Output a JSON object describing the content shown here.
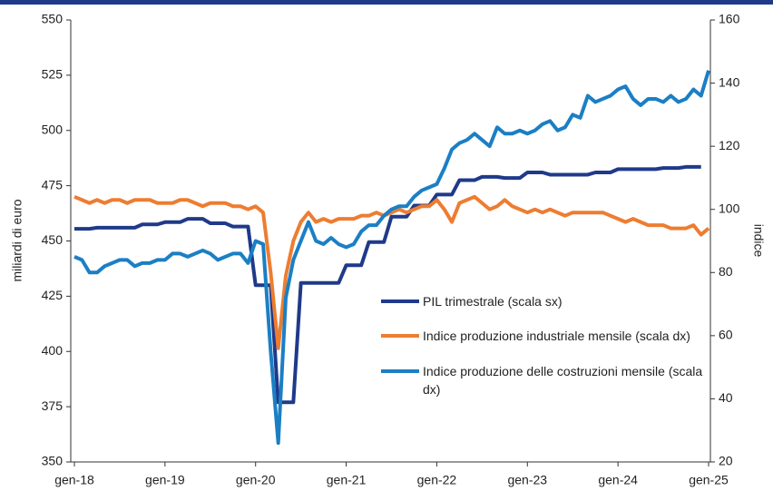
{
  "chart_data": {
    "type": "line",
    "ylabel": "miliardi di euro",
    "y2label": "indice",
    "categories": [
      "gen-18",
      null,
      null,
      null,
      null,
      null,
      null,
      null,
      null,
      null,
      null,
      null,
      "gen-19",
      null,
      null,
      null,
      null,
      null,
      null,
      null,
      null,
      null,
      null,
      null,
      "gen-20",
      null,
      null,
      null,
      null,
      null,
      null,
      null,
      null,
      null,
      null,
      null,
      "gen-21",
      null,
      null,
      null,
      null,
      null,
      null,
      null,
      null,
      null,
      null,
      null,
      "gen-22",
      null,
      null,
      null,
      null,
      null,
      null,
      null,
      null,
      null,
      null,
      null,
      "gen-23",
      null,
      null,
      null,
      null,
      null,
      null,
      null,
      null,
      null,
      null,
      null,
      "gen-24",
      null,
      null,
      null,
      null,
      null,
      null,
      null,
      null,
      null,
      null,
      null,
      "gen-25"
    ],
    "ylim": [
      350,
      550
    ],
    "yticks": [
      350,
      375,
      400,
      425,
      450,
      475,
      500,
      525,
      550
    ],
    "y2lim": [
      20,
      160
    ],
    "y2ticks": [
      20,
      40,
      60,
      80,
      100,
      120,
      140,
      160
    ],
    "series": [
      {
        "name": "PIL trimestrale (scala sx)",
        "color": "#1f3a8a",
        "axis": "y",
        "values": [
          455.5,
          455.5,
          455.5,
          456,
          456,
          456,
          456,
          456,
          456,
          457.5,
          457.5,
          457.5,
          458.5,
          458.5,
          458.5,
          460,
          460,
          460,
          458,
          458,
          458,
          456.5,
          456.5,
          456.5,
          430,
          430,
          430,
          377,
          377,
          377,
          431,
          431,
          431,
          431,
          431,
          431,
          439,
          439,
          439,
          449.5,
          449.5,
          449.5,
          461,
          461,
          461,
          466,
          466,
          466,
          471,
          471,
          471,
          477.5,
          477.5,
          477.5,
          479,
          479,
          479,
          478.5,
          478.5,
          478.5,
          481,
          481,
          481,
          480,
          480,
          480,
          480,
          480,
          480,
          481,
          481,
          481,
          482.5,
          482.5,
          482.5,
          482.5,
          482.5,
          482.5,
          483,
          483,
          483,
          483.5,
          483.5,
          483.5,
          null
        ]
      },
      {
        "name": "Indice produzione industriale mensile (scala dx)",
        "color": "#ed7d31",
        "axis": "y2",
        "values": [
          104,
          103,
          102,
          103,
          102,
          103,
          103,
          102,
          103,
          103,
          103,
          102,
          102,
          102,
          103,
          103,
          102,
          101,
          102,
          102,
          102,
          101,
          101,
          100,
          101,
          99,
          80,
          56,
          79,
          90,
          96,
          99,
          96,
          97,
          96,
          97,
          97,
          97,
          98,
          98,
          99,
          98,
          99,
          100,
          99,
          100,
          101,
          101,
          103,
          100,
          96,
          102,
          103,
          104,
          102,
          100,
          101,
          103,
          101,
          100,
          99,
          100,
          99,
          100,
          99,
          98,
          99,
          99,
          99,
          99,
          99,
          98,
          97,
          96,
          97,
          96,
          95,
          95,
          95,
          94,
          94,
          94,
          95,
          92,
          94
        ]
      },
      {
        "name": "Indice produzione delle costruzioni mensile (scala dx)",
        "color": "#1b7fc4",
        "axis": "y2",
        "values": [
          85,
          84,
          80,
          80,
          82,
          83,
          84,
          84,
          82,
          83,
          83,
          84,
          84,
          86,
          86,
          85,
          86,
          87,
          86,
          84,
          85,
          86,
          86,
          83,
          90,
          89,
          55,
          26,
          72,
          84,
          90,
          96,
          90,
          89,
          91,
          89,
          88,
          89,
          93,
          95,
          95,
          98,
          100,
          101,
          101,
          104,
          106,
          107,
          108,
          113,
          119,
          121,
          122,
          124,
          122,
          120,
          126,
          124,
          124,
          125,
          124,
          125,
          127,
          128,
          125,
          126,
          130,
          129,
          136,
          134,
          135,
          136,
          138,
          139,
          135,
          133,
          135,
          135,
          134,
          136,
          134,
          135,
          138,
          136,
          144
        ]
      }
    ]
  }
}
